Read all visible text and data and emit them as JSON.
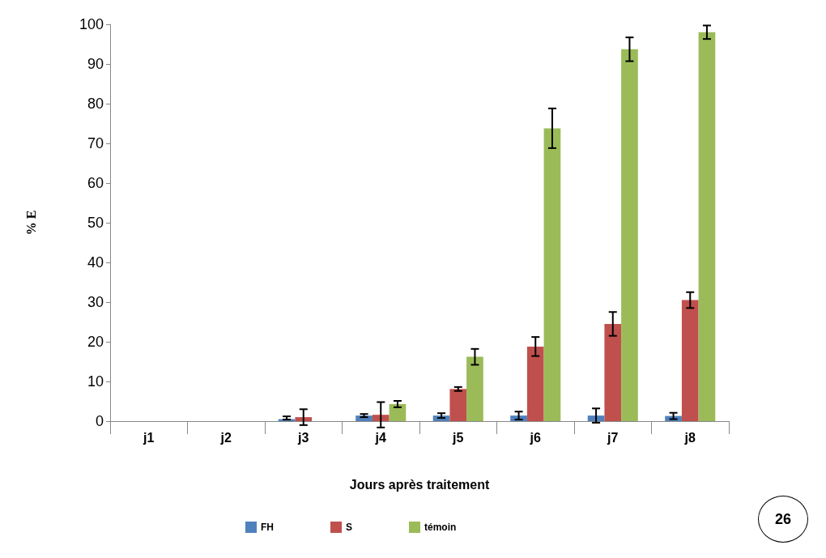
{
  "chart_data": {
    "type": "bar",
    "xlabel": "Jours après traitement",
    "ylabel": "% E",
    "categories": [
      "j1",
      "j2",
      "j3",
      "j4",
      "j5",
      "j6",
      "j7",
      "j8"
    ],
    "series": [
      {
        "name": "FH",
        "color": "#4f81bd",
        "values": [
          0,
          0,
          0.5,
          1.4,
          1.4,
          1.4,
          1.4,
          1.3
        ],
        "errors": [
          null,
          null,
          [
            0.4,
            1.2
          ],
          0.4,
          0.6,
          1.0,
          1.8,
          0.8
        ]
      },
      {
        "name": "S",
        "color": "#c0504d",
        "values": [
          0,
          0,
          1,
          1.6,
          8.1,
          18.8,
          24.5,
          30.5
        ],
        "errors": [
          null,
          null,
          2,
          3.2,
          0.5,
          2.4,
          3,
          2
        ]
      },
      {
        "name": "témoin",
        "color": "#9bbb59",
        "values": [
          0,
          0,
          0,
          4.3,
          16.2,
          73.8,
          93.7,
          98
        ],
        "errors": [
          null,
          null,
          null,
          0.8,
          2,
          5,
          3,
          1.7
        ]
      }
    ],
    "ylim": [
      0,
      100
    ],
    "yticks": [
      0,
      10,
      20,
      30,
      40,
      50,
      60,
      70,
      80,
      90,
      100
    ],
    "grid": false,
    "legend": "bottom",
    "annotations": [
      "26"
    ]
  }
}
